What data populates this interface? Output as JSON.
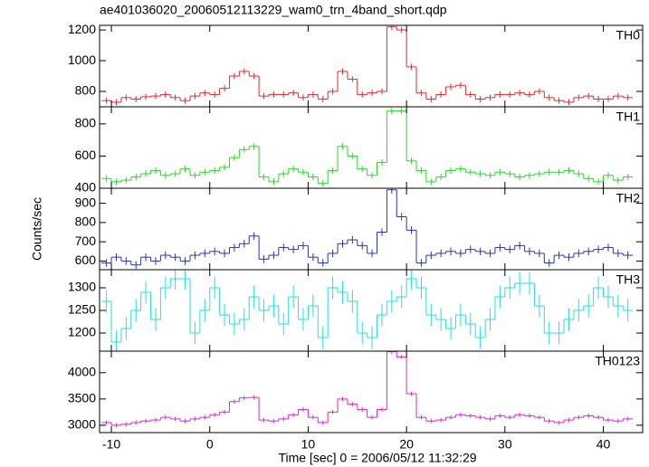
{
  "chart_data": {
    "type": "step",
    "title": "ae401036020_20060512113229_wam0_trn_4band_short.qdp",
    "xlabel": "Time [sec] 0 = 2006/05/12 11:32:29",
    "ylabel": "Counts/sec",
    "xlim": [
      -11.2,
      44
    ],
    "xticks": [
      -10,
      0,
      10,
      20,
      30,
      40
    ],
    "x": [
      -10.5,
      -9.5,
      -8.5,
      -7.5,
      -6.5,
      -5.5,
      -4.5,
      -3.5,
      -2.5,
      -1.5,
      -0.5,
      0.5,
      1.5,
      2.5,
      3.5,
      4.5,
      5.5,
      6.5,
      7.5,
      8.5,
      9.5,
      10.5,
      11.5,
      12.5,
      13.5,
      14.5,
      15.5,
      16.5,
      17.5,
      18.5,
      19.5,
      20.5,
      21.5,
      22.5,
      23.5,
      24.5,
      25.5,
      26.5,
      27.5,
      28.5,
      29.5,
      30.5,
      31.5,
      32.5,
      33.5,
      34.5,
      35.5,
      36.5,
      37.5,
      38.5,
      39.5,
      40.5,
      41.5,
      42.5
    ],
    "series": [
      {
        "name": "TH0",
        "color": "#e8262a",
        "error": 20,
        "ylim": [
          700,
          1230
        ],
        "yticks": [
          800,
          1000,
          1200
        ],
        "values": [
          740,
          730,
          760,
          750,
          765,
          770,
          780,
          760,
          740,
          770,
          790,
          780,
          820,
          900,
          930,
          900,
          770,
          780,
          780,
          790,
          760,
          780,
          750,
          800,
          930,
          880,
          780,
          790,
          800,
          1220,
          1200,
          960,
          790,
          750,
          780,
          830,
          840,
          780,
          750,
          760,
          780,
          780,
          790,
          780,
          800,
          760,
          740,
          730,
          760,
          770,
          750,
          750,
          770,
          760
        ]
      },
      {
        "name": "TH1",
        "color": "#22dd22",
        "error": 20,
        "ylim": [
          400,
          906
        ],
        "yticks": [
          400,
          600,
          800
        ],
        "values": [
          460,
          440,
          450,
          470,
          490,
          510,
          480,
          490,
          520,
          480,
          500,
          510,
          530,
          590,
          640,
          660,
          470,
          440,
          490,
          520,
          500,
          470,
          430,
          510,
          660,
          600,
          520,
          480,
          560,
          880,
          880,
          570,
          510,
          440,
          470,
          510,
          520,
          500,
          490,
          480,
          500,
          490,
          470,
          480,
          490,
          500,
          500,
          510,
          490,
          460,
          440,
          480,
          450,
          470
        ]
      },
      {
        "name": "TH2",
        "color": "#2233cc",
        "error": 20,
        "ylim": [
          555,
          978
        ],
        "yticks": [
          600,
          700,
          800,
          900
        ],
        "values": [
          590,
          620,
          600,
          580,
          620,
          600,
          630,
          620,
          600,
          630,
          640,
          650,
          640,
          670,
          690,
          730,
          610,
          630,
          670,
          660,
          680,
          620,
          590,
          640,
          690,
          710,
          680,
          640,
          750,
          970,
          830,
          760,
          590,
          630,
          640,
          650,
          640,
          660,
          650,
          640,
          670,
          660,
          680,
          650,
          640,
          590,
          630,
          620,
          640,
          650,
          660,
          670,
          640,
          630
        ]
      },
      {
        "name": "TH3",
        "color": "#22e0e0",
        "error": 25,
        "ylim": [
          1160,
          1340
        ],
        "yticks": [
          1200,
          1250,
          1300
        ],
        "values": [
          1270,
          1180,
          1210,
          1250,
          1290,
          1230,
          1300,
          1320,
          1320,
          1200,
          1250,
          1300,
          1240,
          1220,
          1230,
          1280,
          1250,
          1260,
          1220,
          1280,
          1230,
          1260,
          1190,
          1300,
          1290,
          1270,
          1200,
          1190,
          1240,
          1270,
          1280,
          1320,
          1300,
          1240,
          1230,
          1210,
          1240,
          1220,
          1190,
          1230,
          1280,
          1300,
          1310,
          1310,
          1260,
          1200,
          1200,
          1230,
          1250,
          1260,
          1300,
          1280,
          1260,
          1250
        ]
      },
      {
        "name": "TH0123",
        "color": "#dd22dd",
        "error": 40,
        "ylim": [
          2860,
          4410
        ],
        "yticks": [
          3000,
          3500,
          4000
        ],
        "values": [
          3050,
          3000,
          3020,
          3050,
          3080,
          3100,
          3150,
          3120,
          3080,
          3120,
          3150,
          3200,
          3250,
          3450,
          3520,
          3530,
          3100,
          3080,
          3120,
          3200,
          3300,
          3150,
          3050,
          3250,
          3500,
          3400,
          3300,
          3150,
          3300,
          4400,
          4300,
          3600,
          3150,
          3080,
          3100,
          3150,
          3200,
          3180,
          3150,
          3120,
          3180,
          3150,
          3200,
          3180,
          3150,
          3080,
          3050,
          3100,
          3150,
          3180,
          3150,
          3100,
          3080,
          3120
        ]
      }
    ]
  }
}
